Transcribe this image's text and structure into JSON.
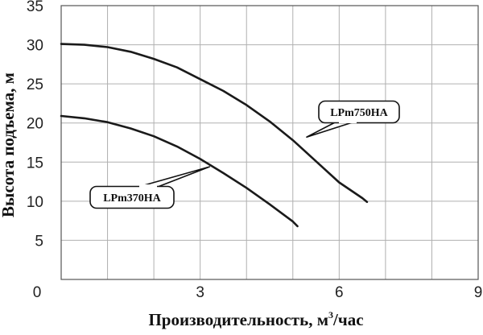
{
  "chart_data": {
    "type": "line",
    "xlabel": "Производительность, м",
    "xlabel_sup": "3",
    "xlabel_tail": "/час",
    "ylabel": "Высота подъема, м",
    "xlim": [
      0,
      9
    ],
    "ylim": [
      0,
      35
    ],
    "x_ticks": [
      0,
      3,
      6,
      9
    ],
    "y_ticks": [
      5,
      10,
      15,
      20,
      25,
      30,
      35
    ],
    "x_tick_labels": [
      "0",
      "3",
      "6",
      "9"
    ],
    "y_tick_labels": [
      "5",
      "10",
      "15",
      "20",
      "25",
      "30",
      "35"
    ],
    "grid": true,
    "series": [
      {
        "name": "LPm750HA",
        "x": [
          0.0,
          0.5,
          1.0,
          1.5,
          2.0,
          2.5,
          3.0,
          3.5,
          4.0,
          4.5,
          5.0,
          5.5,
          6.0,
          6.5,
          6.6
        ],
        "y": [
          30.1,
          30.0,
          29.7,
          29.1,
          28.2,
          27.1,
          25.6,
          24.1,
          22.3,
          20.2,
          17.8,
          15.1,
          12.4,
          10.4,
          9.9
        ]
      },
      {
        "name": "LPm370HA",
        "x": [
          0.0,
          0.5,
          1.0,
          1.5,
          2.0,
          2.5,
          3.0,
          3.5,
          4.0,
          4.5,
          5.0,
          5.1
        ],
        "y": [
          20.9,
          20.6,
          20.1,
          19.3,
          18.3,
          17.0,
          15.4,
          13.6,
          11.7,
          9.6,
          7.4,
          6.8
        ]
      }
    ],
    "annotations": [
      {
        "text": "LPm750HA",
        "series": 0,
        "x": 5.3,
        "y": 18.2
      },
      {
        "text": "LPm370HA",
        "series": 1,
        "x": 3.2,
        "y": 14.4
      }
    ]
  }
}
